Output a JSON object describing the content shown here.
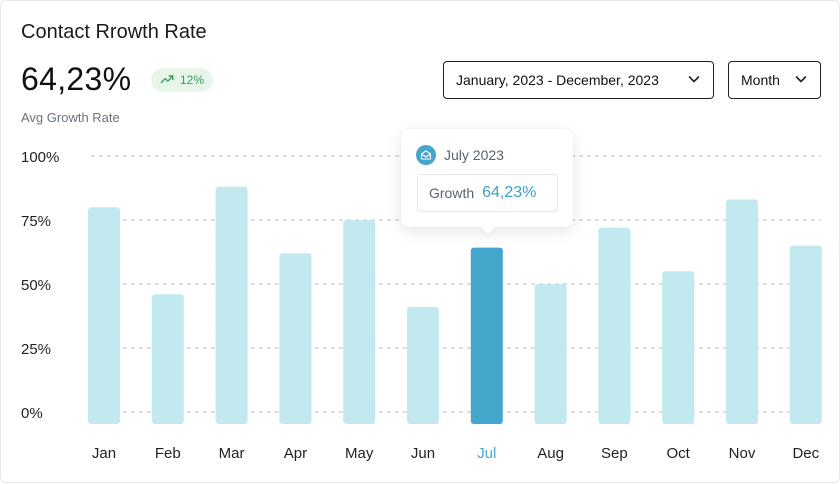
{
  "card": {
    "title": "Contact Rrowth Rate",
    "headline_value": "64,23%",
    "badge": {
      "text": "12%",
      "icon": "trend-up-icon",
      "color": "#3d9a55"
    },
    "subtitle": "Avg Growth Rate"
  },
  "filters": {
    "date_range": {
      "label": "January, 2023 - December, 2023",
      "icon": "chevron-down-icon"
    },
    "granularity": {
      "label": "Month",
      "icon": "chevron-down-icon"
    }
  },
  "tooltip": {
    "icon": "envelope-open-icon",
    "date": "July 2023",
    "label": "Growth",
    "value": "64,23%"
  },
  "colors": {
    "bar": "#c2e9ef",
    "bar_highlight": "#45a6cc",
    "highlight_label": "#4aa6d2",
    "grid": "#b9bec5"
  },
  "chart_data": {
    "type": "bar",
    "categories": [
      "Jan",
      "Feb",
      "Mar",
      "Apr",
      "May",
      "Jun",
      "Jul",
      "Aug",
      "Sep",
      "Oct",
      "Nov",
      "Dec"
    ],
    "values": [
      80,
      46,
      88,
      62,
      75,
      41,
      64.23,
      50,
      72,
      55,
      83,
      65
    ],
    "highlighted_category": "Jul",
    "ylim": [
      0,
      100
    ],
    "yticks": [
      0,
      25,
      50,
      75,
      100
    ],
    "ytick_labels": [
      "0%",
      "25%",
      "50%",
      "75%",
      "100%"
    ],
    "grid": true
  }
}
